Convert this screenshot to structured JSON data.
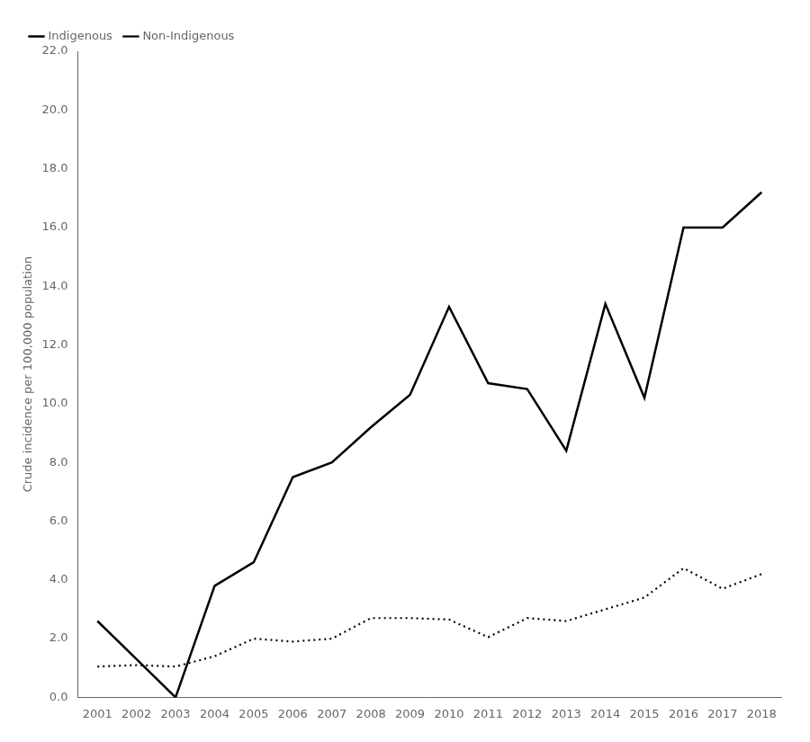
{
  "chart_data": {
    "type": "line",
    "x": [
      2001,
      2002,
      2003,
      2004,
      2005,
      2006,
      2007,
      2008,
      2009,
      2010,
      2011,
      2012,
      2013,
      2014,
      2015,
      2016,
      2017,
      2018
    ],
    "series": [
      {
        "name": "Indigenous",
        "color": "#000000",
        "line_style": "solid",
        "values": [
          2.6,
          1.3,
          0.0,
          3.8,
          4.6,
          7.5,
          8.0,
          9.2,
          10.3,
          13.3,
          10.7,
          10.5,
          8.4,
          13.4,
          10.2,
          16.0,
          16.0,
          17.2
        ]
      },
      {
        "name": "Non-Indigenous",
        "color": "#000000",
        "line_style": "dotted",
        "values": [
          1.05,
          1.1,
          1.05,
          1.4,
          2.0,
          1.9,
          2.0,
          2.7,
          2.7,
          2.65,
          2.05,
          2.7,
          2.6,
          3.0,
          3.4,
          4.4,
          3.7,
          4.2
        ]
      }
    ],
    "xlim": [
      2000.5,
      2018.5
    ],
    "xticks": [
      2001,
      2002,
      2003,
      2004,
      2005,
      2006,
      2007,
      2008,
      2009,
      2010,
      2011,
      2012,
      2013,
      2014,
      2015,
      2016,
      2017,
      2018
    ],
    "ylim": [
      0,
      22.0
    ],
    "yticks": [
      {
        "value": 0,
        "label": "0.0"
      },
      {
        "value": 2,
        "label": "2.0"
      },
      {
        "value": 4,
        "label": "4.0"
      },
      {
        "value": 6,
        "label": "6.0"
      },
      {
        "value": 8,
        "label": "8.0"
      },
      {
        "value": 10,
        "label": "10.0"
      },
      {
        "value": 12,
        "label": "12.0"
      },
      {
        "value": 14,
        "label": "14.0"
      },
      {
        "value": 16,
        "label": "16.0"
      },
      {
        "value": 18,
        "label": "18.0"
      },
      {
        "value": 20,
        "label": "20.0"
      },
      {
        "value": 22,
        "label": "22.0"
      }
    ],
    "ylabel": "Crude incidence per 100,000 population",
    "grid": false,
    "legend": "upper left"
  }
}
